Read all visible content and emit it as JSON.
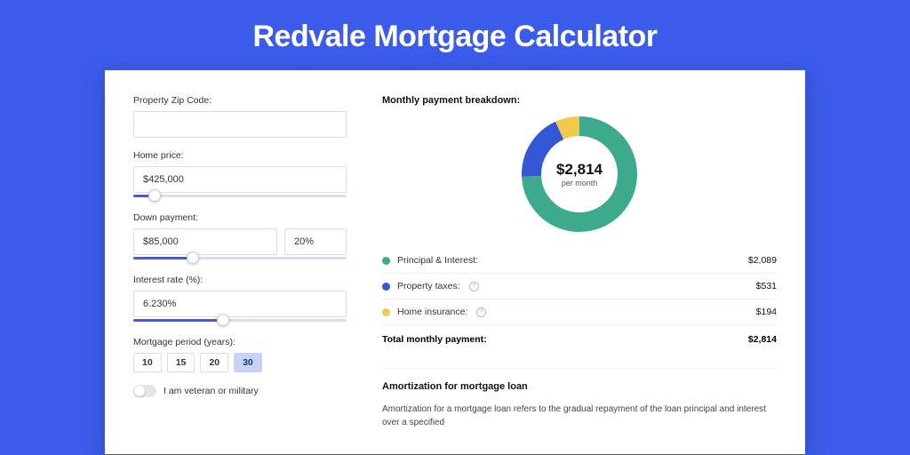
{
  "title": "Redvale Mortgage Calculator",
  "form": {
    "zip": {
      "label": "Property Zip Code:",
      "value": ""
    },
    "home_price": {
      "label": "Home price:",
      "value": "$425,000",
      "slider_pct": 10
    },
    "down_payment": {
      "label": "Down payment:",
      "amount": "$85,000",
      "pct": "20%",
      "slider_pct": 28
    },
    "interest_rate": {
      "label": "Interest rate (%):",
      "value": "6.230%",
      "slider_pct": 42
    },
    "period": {
      "label": "Mortgage period (years):",
      "options": [
        "10",
        "15",
        "20",
        "30"
      ],
      "selected_index": 3
    },
    "veteran": {
      "label": "I am veteran or military",
      "value": false
    }
  },
  "breakdown": {
    "title": "Monthly payment breakdown:",
    "donut": {
      "amount": "$2,814",
      "sub": "per month",
      "type": "donut",
      "size": 130,
      "thickness": 22,
      "rotation_deg": -90,
      "slices": [
        {
          "color": "#3daa8d",
          "pct": 74.2
        },
        {
          "color": "#3457d5",
          "pct": 18.9
        },
        {
          "color": "#f3c94b",
          "pct": 6.9
        }
      ]
    },
    "items": [
      {
        "label": "Principal & Interest:",
        "value": "$2,089",
        "color": "#3daa8d",
        "info": false
      },
      {
        "label": "Property taxes:",
        "value": "$531",
        "color": "#3457d5",
        "info": true
      },
      {
        "label": "Home insurance:",
        "value": "$194",
        "color": "#f3c94b",
        "info": true
      }
    ],
    "total": {
      "label": "Total monthly payment:",
      "value": "$2,814"
    }
  },
  "amortization": {
    "title": "Amortization for mortgage loan",
    "text": "Amortization for a mortgage loan refers to the gradual repayment of the loan principal and interest over a specified"
  }
}
